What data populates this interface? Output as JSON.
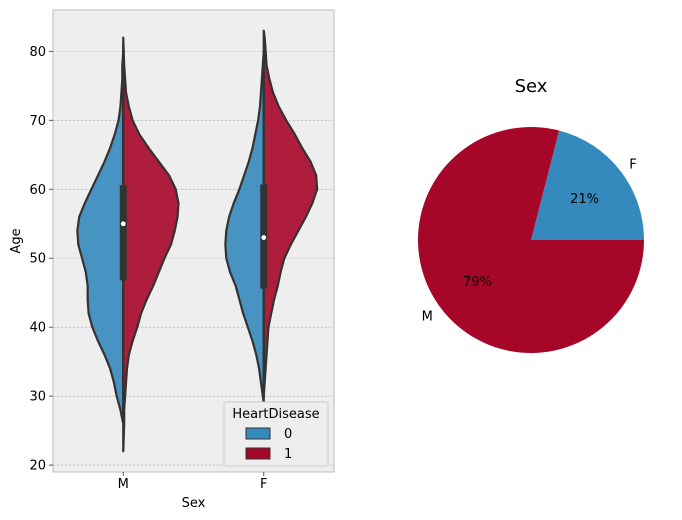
{
  "chart_data": [
    {
      "type": "violin",
      "title": "",
      "xlabel": "Sex",
      "ylabel": "Age",
      "categories": [
        "M",
        "F"
      ],
      "ylim": [
        19,
        86
      ],
      "yticks": [
        20,
        30,
        40,
        50,
        60,
        70,
        80
      ],
      "grid": true,
      "split": true,
      "legend": {
        "title": "HeartDisease",
        "placement": "lower-right",
        "entries": [
          {
            "label": "0",
            "color": "#348ABD"
          },
          {
            "label": "1",
            "color": "#A60628"
          }
        ]
      },
      "box_stats": [
        {
          "category": "M",
          "q1": 46.8,
          "median": 55,
          "q3": 60.6,
          "whisker_low": 28,
          "whisker_high": 77
        },
        {
          "category": "F",
          "q1": 45.6,
          "median": 53,
          "q3": 60.7,
          "whisker_low": 30,
          "whisker_high": 75
        }
      ],
      "series": [
        {
          "name": "0",
          "color": "#348ABD",
          "densities": [
            {
              "category": "M",
              "ages": [
                26,
                28,
                30,
                32,
                34,
                36,
                38,
                40,
                42,
                44,
                46,
                48,
                50,
                52,
                54,
                56,
                58,
                60,
                62,
                64,
                66,
                68,
                70,
                72,
                74,
                76,
                78,
                80,
                81
              ],
              "halfwidth": [
                0,
                0.03,
                0.07,
                0.1,
                0.14,
                0.2,
                0.27,
                0.33,
                0.37,
                0.38,
                0.38,
                0.4,
                0.44,
                0.48,
                0.49,
                0.47,
                0.41,
                0.34,
                0.27,
                0.2,
                0.14,
                0.09,
                0.05,
                0.03,
                0.02,
                0.01,
                0.01,
                0,
                0
              ]
            },
            {
              "category": "F",
              "ages": [
                29,
                30,
                32,
                34,
                36,
                38,
                40,
                42,
                44,
                46,
                48,
                50,
                52,
                54,
                56,
                58,
                60,
                62,
                64,
                66,
                68,
                70,
                72,
                74,
                76,
                78,
                80
              ],
              "halfwidth": [
                0,
                0.01,
                0.03,
                0.05,
                0.08,
                0.12,
                0.17,
                0.22,
                0.26,
                0.3,
                0.36,
                0.4,
                0.41,
                0.4,
                0.37,
                0.32,
                0.26,
                0.21,
                0.16,
                0.12,
                0.09,
                0.06,
                0.04,
                0.03,
                0.02,
                0.01,
                0
              ]
            }
          ]
        },
        {
          "name": "1",
          "color": "#A60628",
          "densities": [
            {
              "category": "M",
              "ages": [
                22,
                24,
                26,
                28,
                30,
                32,
                34,
                36,
                38,
                40,
                42,
                44,
                46,
                48,
                50,
                52,
                54,
                56,
                58,
                60,
                62,
                64,
                66,
                68,
                70,
                72,
                74,
                76,
                78,
                80,
                82
              ],
              "halfwidth": [
                0,
                0.005,
                0.01,
                0.01,
                0.02,
                0.03,
                0.04,
                0.06,
                0.1,
                0.15,
                0.19,
                0.25,
                0.32,
                0.38,
                0.44,
                0.51,
                0.55,
                0.58,
                0.59,
                0.56,
                0.49,
                0.38,
                0.27,
                0.17,
                0.1,
                0.06,
                0.03,
                0.02,
                0.01,
                0.005,
                0
              ]
            },
            {
              "category": "F",
              "ages": [
                30,
                32,
                34,
                36,
                38,
                40,
                42,
                44,
                46,
                48,
                50,
                52,
                54,
                56,
                58,
                60,
                62,
                64,
                66,
                68,
                70,
                72,
                74,
                76,
                78,
                80,
                82,
                83
              ],
              "halfwidth": [
                0,
                0.01,
                0.02,
                0.03,
                0.04,
                0.05,
                0.08,
                0.11,
                0.15,
                0.18,
                0.22,
                0.29,
                0.37,
                0.45,
                0.52,
                0.57,
                0.56,
                0.5,
                0.41,
                0.33,
                0.24,
                0.16,
                0.1,
                0.06,
                0.03,
                0.02,
                0.01,
                0
              ]
            }
          ]
        }
      ]
    },
    {
      "type": "pie",
      "title": "Sex",
      "slices": [
        {
          "label": "F",
          "value": 21,
          "pct_label": "21%",
          "color": "#348ABD"
        },
        {
          "label": "M",
          "value": 79,
          "pct_label": "79%",
          "color": "#A60628"
        }
      ]
    }
  ]
}
